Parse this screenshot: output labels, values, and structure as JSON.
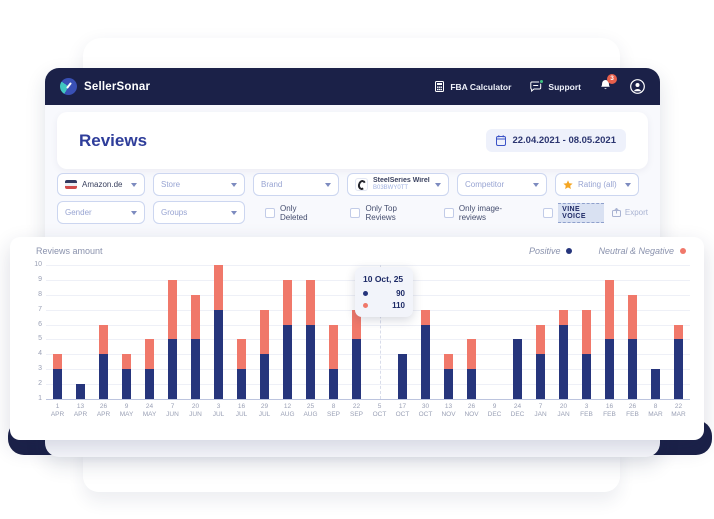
{
  "theme": {
    "header_navy": "#1b2148",
    "accent_blue": "#2e3d9a",
    "positive_color": "#26357c",
    "negative_color": "#f0786a",
    "star_color": "#f5a623",
    "badge_red": "#e8604c",
    "online_green": "#3fc380"
  },
  "header": {
    "brand": "SellerSonar",
    "fba_calculator": "FBA Calculator",
    "support": "Support",
    "notifications_count": "3"
  },
  "page": {
    "title": "Reviews",
    "date_range": "22.04.2021 - 08.05.2021"
  },
  "filters": {
    "marketplace": "Amazon.de",
    "store": "Store",
    "brand": "Brand",
    "product_name": "SteelSeries Wireless ...",
    "product_asin": "B03BWY0TT",
    "competitor": "Competitor",
    "rating": "Rating (all)",
    "gender": "Gender",
    "groups": "Groups",
    "only_deleted": "Only Deleted",
    "only_top_reviews": "Only Top Reviews",
    "only_image_reviews": "Only image-reviews",
    "vine_voice": "VINE VOICE",
    "export": "Export"
  },
  "chart_data": {
    "type": "bar",
    "stacked": true,
    "title": "Reviews amount",
    "legend_position": "top-right",
    "grid": true,
    "ylim": [
      1,
      10
    ],
    "categories": [
      "1 APR",
      "13 APR",
      "26 APR",
      "9 MAY",
      "24 MAY",
      "7 JUN",
      "20 JUN",
      "3 JUL",
      "16 JUL",
      "29 JUL",
      "12 AUG",
      "25 AUG",
      "8 SEP",
      "22 SEP",
      "5 OCT",
      "17 OCT",
      "30 OCT",
      "13 NOV",
      "26 NOV",
      "9 DEC",
      "24 DEC",
      "7 JAN",
      "20 JAN",
      "3 FEB",
      "16 FEB",
      "26 FEB",
      "8 MAR",
      "22 MAR"
    ],
    "series": [
      {
        "name": "Positive",
        "color": "#26357c",
        "values": [
          3,
          2,
          4,
          3,
          3,
          5,
          5,
          7,
          3,
          4,
          6,
          6,
          3,
          5,
          0,
          4,
          6,
          3,
          3,
          0,
          5,
          4,
          6,
          4,
          5,
          5,
          3,
          5
        ]
      },
      {
        "name": "Neutral & Negative",
        "color": "#f0786a",
        "values": [
          1,
          0,
          2,
          1,
          2,
          4,
          3,
          3,
          2,
          3,
          3,
          3,
          3,
          2,
          0,
          0,
          1,
          1,
          2,
          0,
          0,
          2,
          1,
          3,
          4,
          3,
          0,
          1
        ]
      }
    ],
    "tooltip": {
      "title": "10 Oct, 25",
      "rows": [
        {
          "label": "Positive",
          "value": "90"
        },
        {
          "label": "Neutral & Negative",
          "value": "110"
        }
      ]
    }
  }
}
